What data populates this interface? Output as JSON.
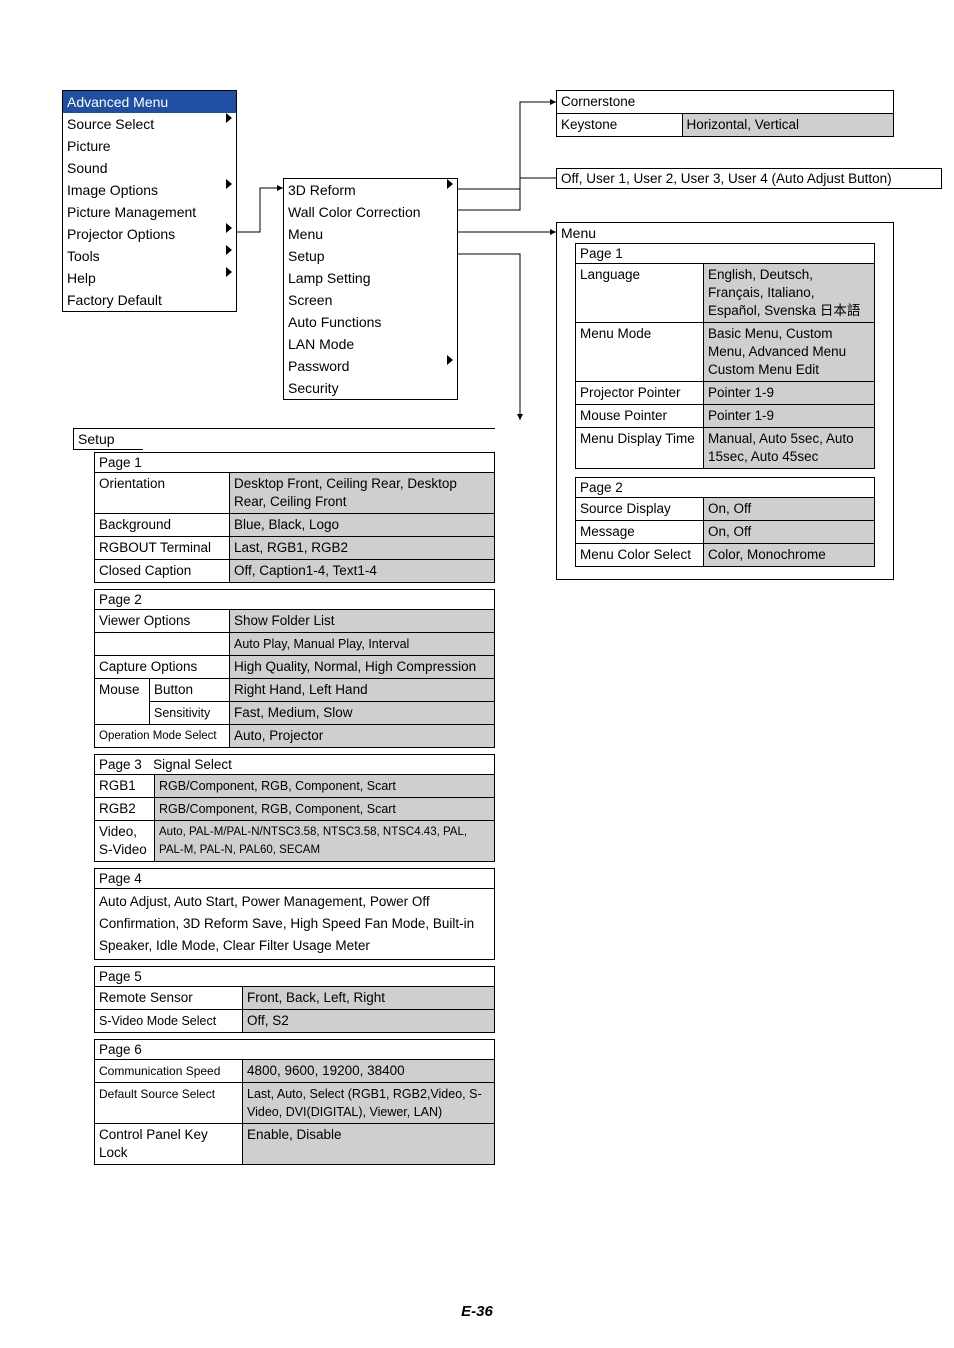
{
  "advanced_menu": {
    "title": "Advanced Menu",
    "items": [
      {
        "label": "Source Select",
        "sub": true
      },
      {
        "label": "Picture",
        "sub": false
      },
      {
        "label": "Sound",
        "sub": false
      },
      {
        "label": "Image Options",
        "sub": true
      },
      {
        "label": "Picture Management",
        "sub": false
      },
      {
        "label": "Projector Options",
        "sub": true
      },
      {
        "label": "Tools",
        "sub": true
      },
      {
        "label": "Help",
        "sub": true
      },
      {
        "label": "Factory Default",
        "sub": false
      }
    ]
  },
  "projector_options": {
    "items": [
      {
        "label": "3D Reform",
        "sub": true
      },
      {
        "label": "Wall Color Correction",
        "sub": false
      },
      {
        "label": "Menu",
        "sub": false
      },
      {
        "label": "Setup",
        "sub": false
      },
      {
        "label": "Lamp Setting",
        "sub": false
      },
      {
        "label": "Screen",
        "sub": false
      },
      {
        "label": "Auto Functions",
        "sub": false
      },
      {
        "label": "LAN Mode",
        "sub": false
      },
      {
        "label": "Password",
        "sub": true
      },
      {
        "label": "Security",
        "sub": false
      }
    ]
  },
  "three_d_reform": {
    "cornerstone": "Cornerstone",
    "keystone_label": "Keystone",
    "keystone_value": "Horizontal, Vertical"
  },
  "wall_color": "Off, User 1, User 2, User 3, User 4 (Auto  Adjust Button)",
  "menu_detail": {
    "title": "Menu",
    "page1": {
      "label": "Page 1",
      "rows": [
        {
          "k": "Language",
          "v": "English, Deutsch, Français, Italiano, Español, Svenska 日本語"
        },
        {
          "k": "Menu Mode",
          "v": "Basic Menu, Custom Menu, Advanced Menu Custom Menu Edit"
        },
        {
          "k": "Projector Pointer",
          "v": "Pointer 1-9"
        },
        {
          "k": "Mouse Pointer",
          "v": "Pointer 1-9"
        },
        {
          "k": "Menu Display Time",
          "v": "Manual, Auto 5sec, Auto 15sec, Auto 45sec"
        }
      ]
    },
    "page2": {
      "label": "Page 2",
      "rows": [
        {
          "k": "Source Display",
          "v": "On, Off"
        },
        {
          "k": "Message",
          "v": "On, Off"
        },
        {
          "k": "Menu Color Select",
          "v": "Color, Monochrome"
        }
      ]
    }
  },
  "setup_detail": {
    "title": "Setup",
    "page1": {
      "label": "Page 1",
      "rows": [
        {
          "k": "Orientation",
          "v": "Desktop Front, Ceiling Rear, Desktop Rear, Ceiling Front"
        },
        {
          "k": "Background",
          "v": "Blue, Black, Logo"
        },
        {
          "k": "RGBOUT Terminal",
          "v": "Last, RGB1, RGB2"
        },
        {
          "k": "Closed Caption",
          "v": "Off, Caption1-4, Text1-4"
        }
      ]
    },
    "page2": {
      "label": "Page 2",
      "rows": [
        {
          "k": "Viewer Options",
          "v": "Show Folder List",
          "v2": "Auto Play, Manual Play, Interval"
        },
        {
          "k": "Capture Options",
          "v": "High Quality, Normal, High Compression"
        },
        {
          "k": "Mouse",
          "k2": "Button",
          "v": "Right Hand, Left Hand"
        },
        {
          "k": "",
          "k2": "Sensitivity",
          "v": "Fast, Medium, Slow"
        },
        {
          "k": "Operation Mode Select",
          "v": "Auto, Projector"
        }
      ]
    },
    "page3": {
      "label": "Page 3",
      "sub": "Signal Select",
      "rows": [
        {
          "k": "RGB1",
          "v": "RGB/Component, RGB, Component, Scart"
        },
        {
          "k": "RGB2",
          "v": "RGB/Component, RGB, Component, Scart"
        },
        {
          "k": "Video, S-Video",
          "v": "Auto, PAL-M/PAL-N/NTSC3.58, NTSC3.58, NTSC4.43, PAL, PAL-M, PAL-N, PAL60, SECAM"
        }
      ]
    },
    "page4": {
      "label": "Page 4",
      "content": "Auto Adjust, Auto Start, Power Management, Power Off Confirmation, 3D Reform Save, High Speed Fan Mode, Built-in Speaker, Idle Mode, Clear Filter Usage Meter"
    },
    "page5": {
      "label": "Page 5",
      "rows": [
        {
          "k": "Remote Sensor",
          "v": "Front, Back, Left, Right"
        },
        {
          "k": "S-Video Mode Select",
          "v": "Off, S2"
        }
      ]
    },
    "page6": {
      "label": "Page 6",
      "rows": [
        {
          "k": "Communication Speed",
          "v": "4800, 9600, 19200, 38400"
        },
        {
          "k": "Default Source Select",
          "v": "Last, Auto, Select (RGB1, RGB2,Video, S-Video, DVI(DIGITAL), Viewer, LAN)"
        },
        {
          "k": "Control Panel Key Lock",
          "v": "Enable, Disable"
        }
      ]
    }
  },
  "page_number": "E-36"
}
